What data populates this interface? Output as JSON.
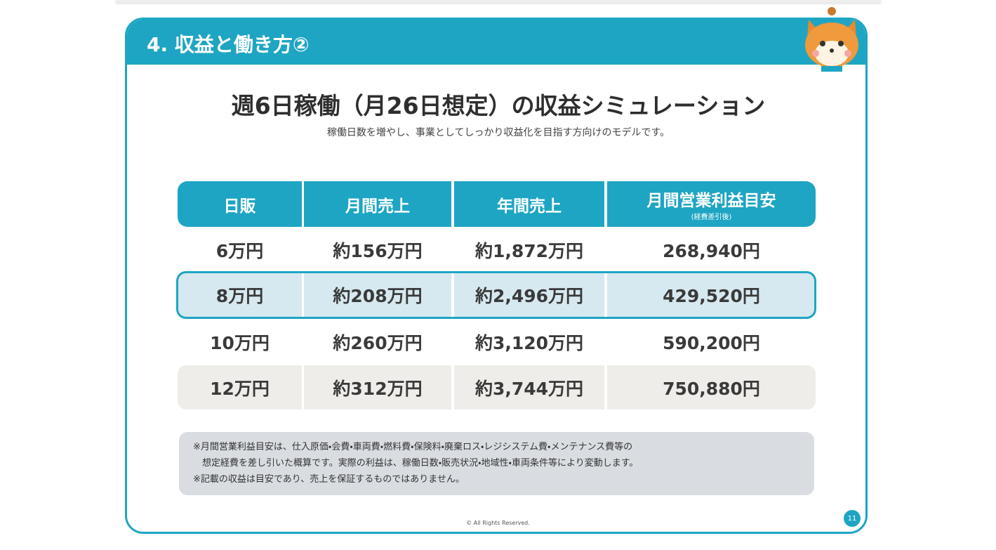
{
  "header": {
    "title": "4. 収益と働き方②"
  },
  "title": "週6日稼働（月26日想定）の収益シミュレーション",
  "subtitle": "稼働日数を増やし、事業としてしっかり収益化を目指す方向けのモデルです。",
  "table": {
    "headers": [
      "日販",
      "月間売上",
      "年間売上",
      "月間営業利益目安"
    ],
    "header_note": "(経費差引後)",
    "rows": [
      [
        "6万円",
        "約156万円",
        "約1,872万円",
        "268,940円"
      ],
      [
        "8万円",
        "約208万円",
        "約2,496万円",
        "429,520円"
      ],
      [
        "10万円",
        "約260万円",
        "約3,120万円",
        "590,200円"
      ],
      [
        "12万円",
        "約312万円",
        "約3,744万円",
        "750,880円"
      ]
    ]
  },
  "notes": [
    "※月間営業利益目安は、仕入原価・会費・車両費・燃料費・保険料・廃棄ロス・レジシステム費・メンテナンス費等の",
    "　想定経費を差し引いた概算です。実際の利益は、稼働日数・販売状況・地域性・車両条件等により変動します。",
    "※記載の収益は目安であり、売上を保証するものではありません。"
  ],
  "footer": "© All Rights Reserved.",
  "page_number": "11"
}
